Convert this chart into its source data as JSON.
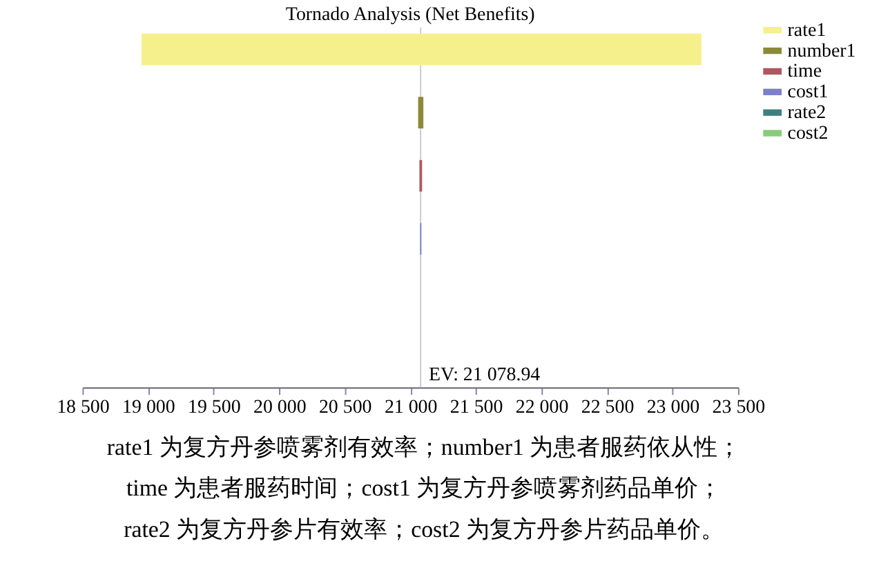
{
  "chart_data": {
    "type": "bar",
    "orientation": "horizontal",
    "title": "Tornado Analysis (Net Benefits)",
    "categories": [
      null,
      null,
      null,
      null,
      null,
      null
    ],
    "series": [
      {
        "name": "rate1",
        "color": "#f5f08c",
        "values": [
          4270,
          null,
          null,
          null,
          null,
          null
        ],
        "base": [
          18950,
          null,
          null,
          null,
          null,
          null
        ]
      },
      {
        "name": "number1",
        "color": "#8a8a3a",
        "values": [
          null,
          40,
          null,
          null,
          null,
          null
        ],
        "base": [
          null,
          21060,
          null,
          null,
          null,
          null
        ]
      },
      {
        "name": "time",
        "color": "#b0565e",
        "values": [
          null,
          null,
          20,
          null,
          null,
          null
        ],
        "base": [
          null,
          null,
          21070,
          null,
          null,
          null
        ]
      },
      {
        "name": "cost1",
        "color": "#7b80c8",
        "values": [
          null,
          null,
          null,
          10,
          null,
          null
        ],
        "base": [
          null,
          null,
          null,
          21075,
          null,
          null
        ]
      },
      {
        "name": "rate2",
        "color": "#3f7f7f",
        "values": [
          null,
          null,
          null,
          null,
          null,
          null
        ]
      },
      {
        "name": "cost2",
        "color": "#88cc7a",
        "values": [
          null,
          null,
          null,
          null,
          null,
          null
        ]
      }
    ],
    "xlim": [
      18500,
      23500
    ],
    "xticks": [
      {
        "value": 18500,
        "label": "18 500"
      },
      {
        "value": 19000,
        "label": "19 000"
      },
      {
        "value": 19500,
        "label": "19 500"
      },
      {
        "value": 20000,
        "label": "20 000"
      },
      {
        "value": 20500,
        "label": "20 500"
      },
      {
        "value": 21000,
        "label": "21 000"
      },
      {
        "value": 21500,
        "label": "21 500"
      },
      {
        "value": 22000,
        "label": "22 000"
      },
      {
        "value": 22500,
        "label": "22 500"
      },
      {
        "value": 23000,
        "label": "23 000"
      },
      {
        "value": 23500,
        "label": "23 500"
      }
    ],
    "ref_lines": [
      {
        "axis": "x",
        "value": 21078.94,
        "label": "EV: 21 078.94",
        "color": "#c8ccd8"
      }
    ],
    "grid": false,
    "legend": "top right",
    "tick_labels": "x",
    "annotations": [
      "rate1 为复方丹参喷雾剂有效率；number1 为患者服药依从性；",
      "time 为患者服药时间；cost1 为复方丹参喷雾剂药品单价；",
      "rate2 为复方丹参片有效率；cost2 为复方丹参片药品单价。"
    ]
  }
}
